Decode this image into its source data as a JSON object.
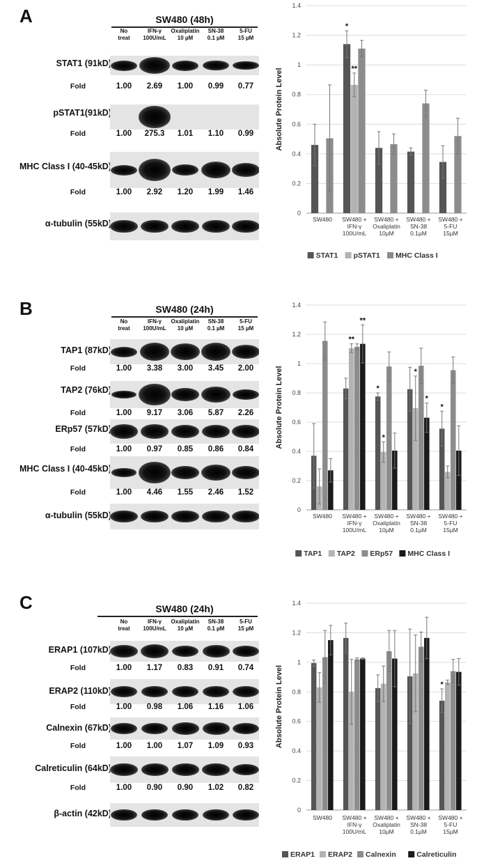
{
  "panels": [
    {
      "letter": "A",
      "blot": {
        "title": "SW480 (48h)",
        "lanes": [
          [
            "No",
            "treat"
          ],
          [
            "IFN-γ",
            "100U/mL"
          ],
          [
            "Oxaliplatin",
            "10 µM"
          ],
          [
            "SN-38",
            "0.1 µM"
          ],
          [
            "5-FU",
            "15 µM"
          ]
        ],
        "rows": [
          {
            "label": "STAT1 (91kD)",
            "fold_label": "Fold",
            "folds": [
              "1.00",
              "2.69",
              "1.00",
              "0.99",
              "0.77"
            ],
            "intensity": [
              1.0,
              2.69,
              1.0,
              0.99,
              0.77
            ]
          },
          {
            "label": "pSTAT1(91kD)",
            "fold_label": "Fold",
            "folds": [
              "1.00",
              "275.3",
              "1.01",
              "1.10",
              "0.99"
            ],
            "intensity": [
              0,
              2.8,
              0,
              0,
              0
            ]
          },
          {
            "label": "MHC Class I (40-45kD)",
            "fold_label": "Fold",
            "folds": [
              "1.00",
              "2.92",
              "1.20",
              "1.99",
              "1.46"
            ],
            "intensity": [
              1.0,
              2.92,
              1.2,
              1.99,
              1.46
            ]
          },
          {
            "label": "α-tubulin (55kD)",
            "fold_label": "",
            "folds": [],
            "intensity": [
              1.4,
              1.4,
              1.4,
              1.4,
              1.4
            ]
          }
        ]
      },
      "chart_data": {
        "type": "bar",
        "ylabel": "Absolute Protein Level",
        "ylim": [
          0,
          1.4
        ],
        "yticks": [
          "0",
          "0.2",
          "0.4",
          "0.6",
          "0.8",
          "1",
          "1.2",
          "1.4"
        ],
        "categories": [
          [
            "SW480"
          ],
          [
            "SW480 +",
            "IFN-γ",
            "100U/mL"
          ],
          [
            "SW480 +",
            "Oxaliplatin",
            "10µM"
          ],
          [
            "SW480 +",
            "SN-38",
            "0.1µM"
          ],
          [
            "SW480 +",
            "5-FU",
            "15µM"
          ]
        ],
        "series": [
          {
            "name": "STAT1",
            "color": "#555555",
            "values": [
              0.46,
              1.14,
              0.44,
              0.415,
              0.345
            ],
            "errors": [
              0.14,
              0.09,
              0.11,
              0.025,
              0.11
            ],
            "sig": [
              "",
              "*",
              "",
              "",
              ""
            ]
          },
          {
            "name": "pSTAT1",
            "color": "#b3b3b3",
            "values": [
              0.003,
              0.865,
              0.003,
              0.003,
              0.003
            ],
            "errors": [
              0,
              0.08,
              0,
              0,
              0
            ],
            "sig": [
              "",
              "**",
              "",
              "",
              ""
            ]
          },
          {
            "name": "MHC Class I",
            "color": "#8c8c8c",
            "values": [
              0.505,
              1.11,
              0.465,
              0.74,
              0.52
            ],
            "errors": [
              0.36,
              0.055,
              0.07,
              0.09,
              0.12
            ],
            "sig": [
              "",
              "",
              "",
              "",
              ""
            ]
          }
        ],
        "legend_position": "bottom"
      }
    },
    {
      "letter": "B",
      "blot": {
        "title": "SW480 (24h)",
        "lanes": [
          [
            "No",
            "treat"
          ],
          [
            "IFN-γ",
            "100U/mL"
          ],
          [
            "Oxaliplatin",
            "10 µM"
          ],
          [
            "SN-38",
            "0.1 µM"
          ],
          [
            "5-FU",
            "15 µM"
          ]
        ],
        "rows": [
          {
            "label": "TAP1 (87kD)",
            "fold_label": "Fold",
            "folds": [
              "1.00",
              "3.38",
              "3.00",
              "3.45",
              "2.00"
            ],
            "intensity": [
              1.0,
              2.2,
              2.0,
              2.2,
              1.6
            ]
          },
          {
            "label": "TAP2 (76kD)",
            "fold_label": "Fold",
            "folds": [
              "1.00",
              "9.17",
              "3.06",
              "5.87",
              "2.26"
            ],
            "intensity": [
              0.6,
              2.8,
              1.4,
              1.9,
              1.0
            ]
          },
          {
            "label": "ERp57 (57kD)",
            "fold_label": "Fold",
            "folds": [
              "1.00",
              "0.97",
              "0.85",
              "0.86",
              "0.84"
            ],
            "intensity": [
              1.6,
              1.6,
              1.5,
              1.5,
              1.5
            ]
          },
          {
            "label": "MHC Class I (40-45kD)",
            "fold_label": "Fold",
            "folds": [
              "1.00",
              "4.46",
              "1.55",
              "2.46",
              "1.52"
            ],
            "intensity": [
              0.7,
              2.8,
              1.4,
              1.9,
              1.4
            ]
          },
          {
            "label": "α-tubulin (55kD)",
            "fold_label": "",
            "folds": [],
            "intensity": [
              1.3,
              1.3,
              1.3,
              1.3,
              1.3
            ]
          }
        ]
      },
      "chart_data": {
        "type": "bar",
        "ylabel": "Absolute Protein Level",
        "ylim": [
          0,
          1.4
        ],
        "yticks": [
          "0",
          "0.2",
          "0.4",
          "0.6",
          "0.8",
          "1",
          "1.2",
          "1.4"
        ],
        "categories": [
          [
            "SW480"
          ],
          [
            "SW480 +",
            "IFN-γ",
            "100U/mL"
          ],
          [
            "SW480 +",
            "Oxaliplatin",
            "10µM"
          ],
          [
            "SW480 +",
            "SN-38",
            "0.1µM"
          ],
          [
            "SW480 +",
            "5-FU",
            "15µM"
          ]
        ],
        "series": [
          {
            "name": "TAP1",
            "color": "#555555",
            "values": [
              0.37,
              0.83,
              0.775,
              0.825,
              0.555
            ],
            "errors": [
              0.22,
              0.07,
              0.025,
              0.15,
              0.12
            ],
            "sig": [
              "",
              "",
              "*",
              "",
              "*"
            ]
          },
          {
            "name": "TAP2",
            "color": "#b3b3b3",
            "values": [
              0.16,
              1.105,
              0.395,
              0.695,
              0.26
            ],
            "errors": [
              0.12,
              0.03,
              0.07,
              0.22,
              0.04
            ],
            "sig": [
              "",
              "**",
              "*",
              "*",
              ""
            ]
          },
          {
            "name": "ERp57",
            "color": "#8c8c8c",
            "values": [
              1.155,
              1.115,
              0.98,
              0.985,
              0.955
            ],
            "errors": [
              0.13,
              0.02,
              0.1,
              0.12,
              0.09
            ],
            "sig": [
              "",
              "",
              "",
              "",
              ""
            ]
          },
          {
            "name": "MHC Class I",
            "color": "#1a1a1a",
            "values": [
              0.27,
              1.135,
              0.405,
              0.63,
              0.405
            ],
            "errors": [
              0.08,
              0.13,
              0.12,
              0.1,
              0.17
            ],
            "sig": [
              "",
              "**",
              "",
              "*",
              ""
            ]
          }
        ],
        "legend_position": "bottom"
      }
    },
    {
      "letter": "C",
      "blot": {
        "title": "SW480 (24h)",
        "lanes": [
          [
            "No",
            "treat"
          ],
          [
            "IFN-γ",
            "100U/mL"
          ],
          [
            "Oxaliplatin",
            "10 µM"
          ],
          [
            "SN-38",
            "0.1 µM"
          ],
          [
            "5-FU",
            "15 µM"
          ]
        ],
        "rows": [
          {
            "label": "ERAP1 (107kD)",
            "fold_label": "Fold",
            "folds": [
              "1.00",
              "1.17",
              "0.83",
              "0.91",
              "0.74"
            ],
            "intensity": [
              1.3,
              1.5,
              1.2,
              1.25,
              1.1
            ]
          },
          {
            "label": "ERAP2 (110kD)",
            "fold_label": "Fold",
            "folds": [
              "1.00",
              "0.98",
              "1.06",
              "1.16",
              "1.06"
            ],
            "intensity": [
              1.1,
              1.1,
              1.15,
              1.2,
              1.15
            ]
          },
          {
            "label": "Calnexin (67kD)",
            "fold_label": "Fold",
            "folds": [
              "1.00",
              "1.00",
              "1.07",
              "1.09",
              "0.93"
            ],
            "intensity": [
              1.2,
              1.2,
              1.25,
              1.25,
              1.15
            ]
          },
          {
            "label": "Calreticulin (64kD)",
            "fold_label": "Fold",
            "folds": [
              "1.00",
              "0.90",
              "0.90",
              "1.02",
              "0.82"
            ],
            "intensity": [
              1.3,
              1.25,
              1.25,
              1.3,
              1.2
            ]
          },
          {
            "label": "β-actin (42kD)",
            "fold_label": "",
            "folds": [],
            "intensity": [
              1.2,
              1.2,
              1.2,
              1.2,
              1.2
            ]
          }
        ]
      },
      "chart_data": {
        "type": "bar",
        "ylabel": "Absolute Protein Level",
        "ylim": [
          0,
          1.4
        ],
        "yticks": [
          "0",
          "0.2",
          "0.4",
          "0.6",
          "0.8",
          "1",
          "1.2",
          "1.4"
        ],
        "categories": [
          [
            "SW480"
          ],
          [
            "SW480 +",
            "IFN-γ",
            "100U/mL"
          ],
          [
            "SW480 +",
            "Oxaliplatin",
            "10µM"
          ],
          [
            "SW480 +",
            "SN-38",
            "0.1µM"
          ],
          [
            "SW480 +",
            "5-FU",
            "15µM"
          ]
        ],
        "series": [
          {
            "name": "ERAP1",
            "color": "#555555",
            "values": [
              0.995,
              1.165,
              0.825,
              0.905,
              0.74
            ],
            "errors": [
              0.02,
              0.1,
              0.09,
              0.32,
              0.08
            ],
            "sig": [
              "",
              "",
              "",
              "",
              "*"
            ]
          },
          {
            "name": "ERAP2",
            "color": "#b3b3b3",
            "values": [
              0.83,
              0.8,
              0.855,
              0.925,
              0.865
            ],
            "errors": [
              0.1,
              0.22,
              0.12,
              0.26,
              0.015
            ],
            "sig": [
              "",
              "",
              "",
              "",
              ""
            ]
          },
          {
            "name": "Calnexin",
            "color": "#8c8c8c",
            "values": [
              1.035,
              1.02,
              1.075,
              1.105,
              0.94
            ],
            "errors": [
              0.18,
              0.01,
              0.14,
              0.1,
              0.08
            ],
            "sig": [
              "",
              "",
              "",
              "",
              ""
            ]
          },
          {
            "name": "Calreticulin",
            "color": "#1a1a1a",
            "values": [
              1.15,
              1.025,
              1.025,
              1.165,
              0.935
            ],
            "errors": [
              0.1,
              0.005,
              0.19,
              0.14,
              0.09
            ],
            "sig": [
              "",
              "",
              "",
              "",
              ""
            ]
          }
        ],
        "legend_position": "bottom"
      }
    }
  ]
}
